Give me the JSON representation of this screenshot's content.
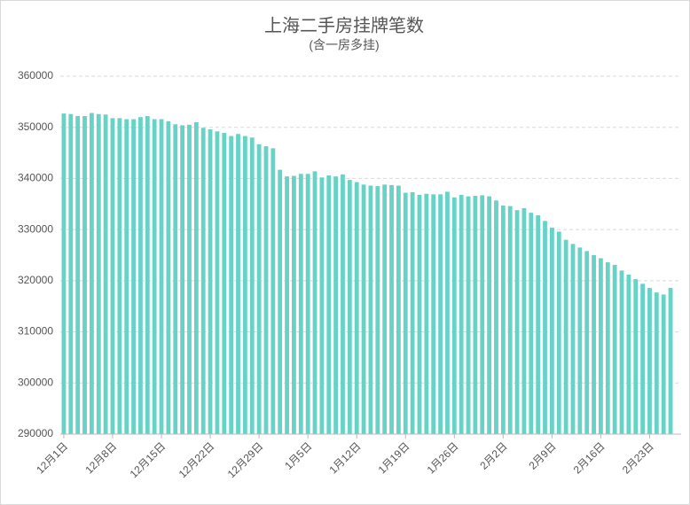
{
  "chart_data": {
    "type": "bar",
    "title": "上海二手房挂牌笔数",
    "subtitle": "(含一房多挂)",
    "categories": [
      "12月1日",
      null,
      null,
      null,
      null,
      null,
      null,
      "12月8日",
      null,
      null,
      null,
      null,
      null,
      null,
      "12月15日",
      null,
      null,
      null,
      null,
      null,
      null,
      "12月22日",
      null,
      null,
      null,
      null,
      null,
      null,
      "12月29日",
      null,
      null,
      null,
      null,
      null,
      null,
      "1月5日",
      null,
      null,
      null,
      null,
      null,
      null,
      "1月12日",
      null,
      null,
      null,
      null,
      null,
      null,
      "1月19日",
      null,
      null,
      null,
      null,
      null,
      null,
      "1月26日",
      null,
      null,
      null,
      null,
      null,
      null,
      "2月2日",
      null,
      null,
      null,
      null,
      null,
      null,
      "2月9日",
      null,
      null,
      null,
      null,
      null,
      null,
      "2月16日",
      null,
      null,
      null,
      null,
      null,
      null,
      "2月23日",
      null,
      null,
      null
    ],
    "values": [
      352700,
      352600,
      352200,
      352200,
      352800,
      352600,
      352500,
      351800,
      351800,
      351600,
      351600,
      352000,
      352200,
      351600,
      351600,
      351200,
      350600,
      350400,
      350500,
      351000,
      349900,
      349600,
      349200,
      348900,
      348300,
      348700,
      348300,
      348000,
      346700,
      346300,
      345900,
      341700,
      340400,
      340500,
      340900,
      340900,
      341400,
      340200,
      340600,
      340400,
      340800,
      339700,
      339300,
      338800,
      338600,
      338500,
      338800,
      338700,
      338600,
      337200,
      337300,
      336800,
      337000,
      336900,
      336900,
      337400,
      336300,
      336800,
      336500,
      336600,
      336700,
      336500,
      335700,
      334700,
      334600,
      333800,
      334200,
      333300,
      332800,
      331700,
      330400,
      329600,
      328000,
      327200,
      326500,
      325800,
      325000,
      324400,
      323600,
      323100,
      322000,
      321200,
      320300,
      319400,
      318600,
      317700,
      317300,
      318600
    ],
    "color": "#66d3c6",
    "ylim": [
      290000,
      360000
    ],
    "yticks": [
      290000,
      300000,
      310000,
      320000,
      330000,
      340000,
      350000,
      360000
    ],
    "grid": true
  }
}
